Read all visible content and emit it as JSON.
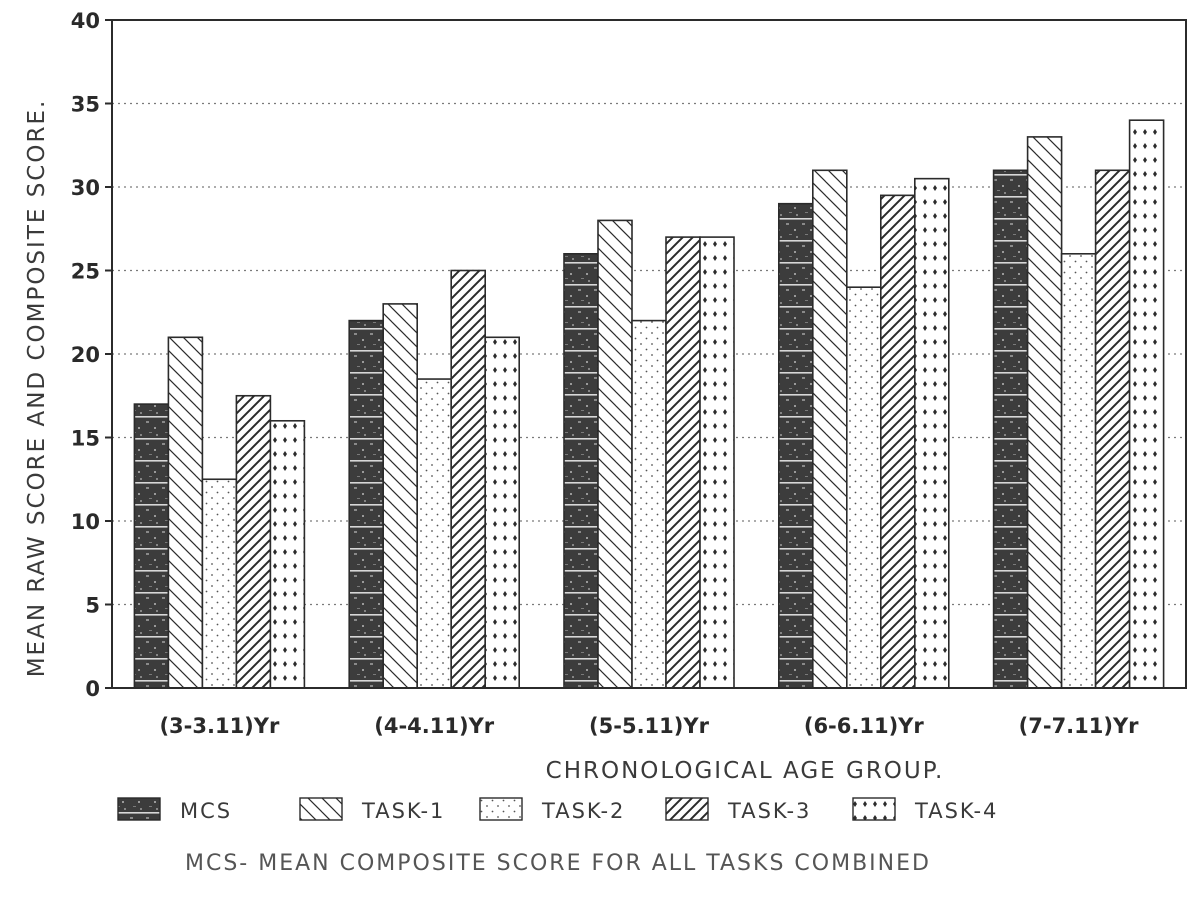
{
  "chart_data": {
    "type": "bar",
    "categories": [
      "(3-3.11)Yr",
      "(4-4.11)Yr",
      "(5-5.11)Yr",
      "(6-6.11)Yr",
      "(7-7.11)Yr"
    ],
    "series": [
      {
        "name": "MCS",
        "pattern": "dark",
        "values": [
          17,
          22,
          26,
          29,
          31
        ]
      },
      {
        "name": "TASK-1",
        "pattern": "backslash",
        "values": [
          21,
          23,
          28,
          31,
          33
        ]
      },
      {
        "name": "TASK-2",
        "pattern": "dots",
        "values": [
          12.5,
          18.5,
          22,
          24,
          26
        ]
      },
      {
        "name": "TASK-3",
        "pattern": "slash",
        "values": [
          17.5,
          25,
          27,
          29.5,
          31
        ]
      },
      {
        "name": "TASK-4",
        "pattern": "diamonds",
        "values": [
          16,
          21,
          27,
          30.5,
          34
        ]
      }
    ],
    "xlabel": "CHRONOLOGICAL AGE GROUP.",
    "ylabel": "MEAN RAW SCORE AND COMPOSITE SCORE.",
    "ylim": [
      0,
      40
    ],
    "yticks": [
      0,
      5,
      10,
      15,
      20,
      25,
      30,
      35,
      40
    ],
    "grid": "horizontal-dotted",
    "legend_position": "bottom",
    "note": "MCS- MEAN COMPOSITE SCORE FOR ALL TASKS COMBINED"
  },
  "colors": {
    "ink": "#2b2b2b",
    "dark_fill": "#3c3c3c",
    "grid": "#7a7a7a"
  }
}
